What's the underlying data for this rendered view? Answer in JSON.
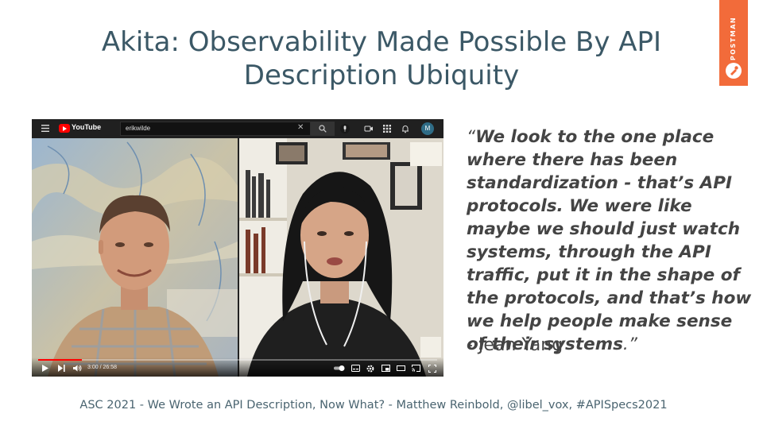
{
  "slide": {
    "title": "Akita: Observability Made Possible By API Description Ubiquity",
    "footer": "ASC 2021 - We Wrote an API Description, Now What? - Matthew Reinbold, @libel_vox, #APISpecs2021"
  },
  "brand": {
    "name": "POSTMAN",
    "color": "#f26b3a"
  },
  "video": {
    "site_name": "YouTube",
    "search_value": "erikwilde",
    "avatar_initial": "M",
    "current_time": "3:00 / 26:58",
    "progress_fraction": 0.11,
    "participants": [
      "Erik Wilde",
      "Jean Yang"
    ],
    "progress_color": "#ff0000"
  },
  "quote": {
    "open_mark": "“",
    "text": "We look to the one place where there has been standardization - that’s API protocols. We were like maybe we should just watch systems, through the API traffic, put it in the shape of the protocols, and that’s how we help people make sense of their systems",
    "close_mark": ".”",
    "author": "- Jean Yang"
  },
  "colors": {
    "title": "#3b5866",
    "quote": "#444444",
    "footer": "#4a6470"
  }
}
